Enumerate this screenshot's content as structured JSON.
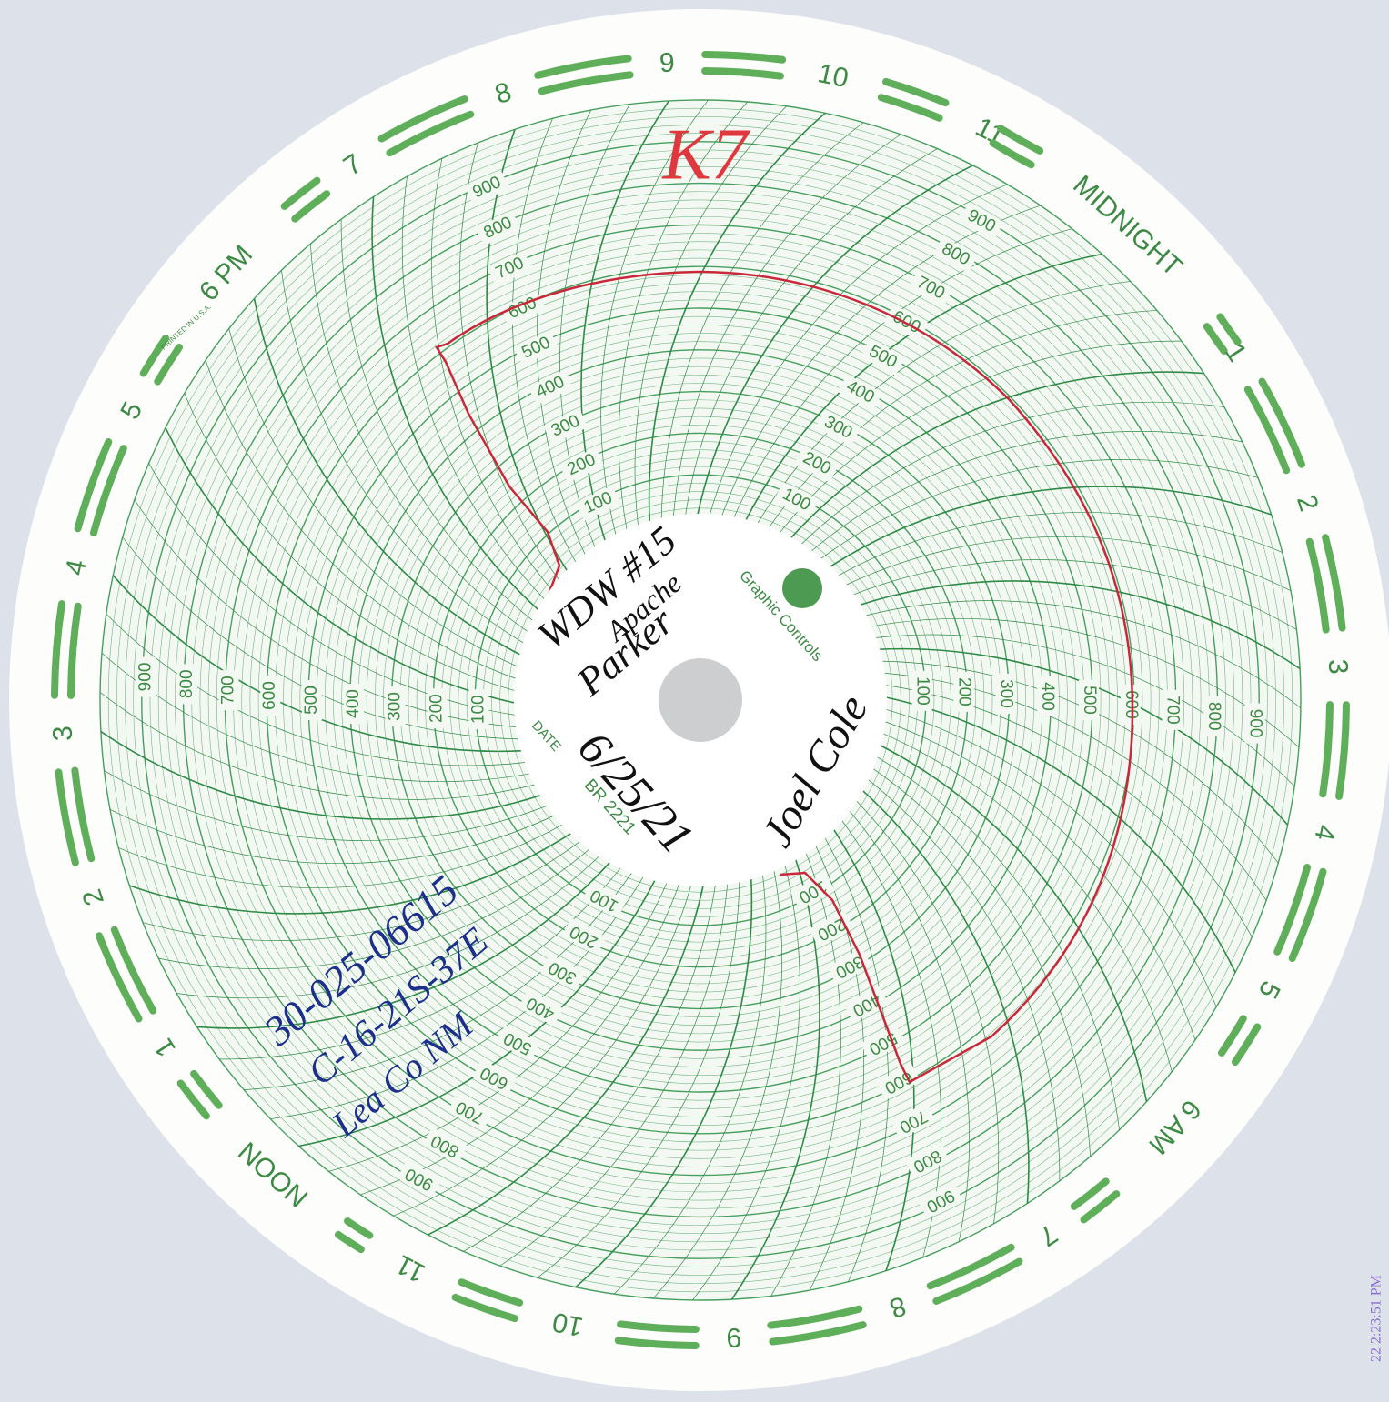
{
  "ring_hours": [
    "9",
    "10",
    "11",
    "MIDNIGHT",
    "1",
    "2",
    "3",
    "4",
    "5",
    "6 AM",
    "7",
    "8",
    "9",
    "10",
    "11",
    "NOON",
    "1",
    "2",
    "3",
    "4",
    "5",
    "6 PM",
    "7",
    "8"
  ],
  "scale_labels": [
    "100",
    "200",
    "300",
    "400",
    "500",
    "600",
    "700",
    "800",
    "900"
  ],
  "printed": {
    "brand": "Graphic Controls",
    "date_label": "DATE",
    "chart_number": "BR 2221",
    "origin": "PRINTED IN U.S.A."
  },
  "handwritten": {
    "chart_id": "K7",
    "well": "WDW #15",
    "operator": "Apache",
    "lease": "Parker",
    "signature": "Joel Cole",
    "date": "6/25/21",
    "api_number": "30-025-06615",
    "location": "C-16-21S-37E",
    "county": "Lea Co NM"
  },
  "scan_timestamp": "22 2:23:51 PM"
}
